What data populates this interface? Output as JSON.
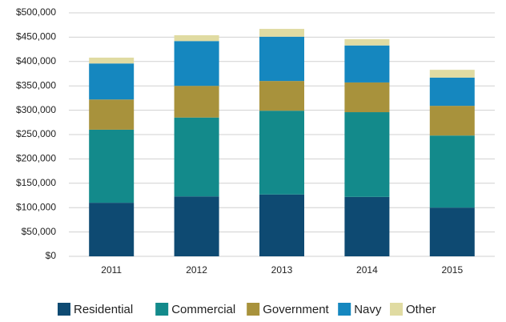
{
  "chart_data": {
    "type": "stacked_bar",
    "categories": [
      "2011",
      "2012",
      "2013",
      "2014",
      "2015"
    ],
    "series": [
      {
        "name": "Residential",
        "color": "#0e4a72",
        "values": [
          110000,
          123000,
          127000,
          122000,
          100000
        ]
      },
      {
        "name": "Commercial",
        "color": "#138a8b",
        "values": [
          150000,
          162000,
          172000,
          174000,
          148000
        ]
      },
      {
        "name": "Government",
        "color": "#a8923c",
        "values": [
          62000,
          65000,
          61000,
          61000,
          61000
        ]
      },
      {
        "name": "Navy",
        "color": "#1587bf",
        "values": [
          74000,
          92000,
          91000,
          76000,
          58000
        ]
      },
      {
        "name": "Other",
        "color": "#e0dba2",
        "values": [
          12000,
          12000,
          16000,
          13000,
          16000
        ]
      }
    ],
    "ylim": [
      0,
      500000
    ],
    "yticks": [
      {
        "value": 0,
        "label": "$0"
      },
      {
        "value": 50000,
        "label": "$50,000"
      },
      {
        "value": 100000,
        "label": "$100,000"
      },
      {
        "value": 150000,
        "label": "$150,000"
      },
      {
        "value": 200000,
        "label": "$200,000"
      },
      {
        "value": 250000,
        "label": "$250,000"
      },
      {
        "value": 300000,
        "label": "$300,000"
      },
      {
        "value": 350000,
        "label": "$350,000"
      },
      {
        "value": 400000,
        "label": "$400,000"
      },
      {
        "value": 450000,
        "label": "$450,000"
      },
      {
        "value": 500000,
        "label": "$500,000"
      }
    ],
    "grid": true,
    "legend": "bottom"
  }
}
